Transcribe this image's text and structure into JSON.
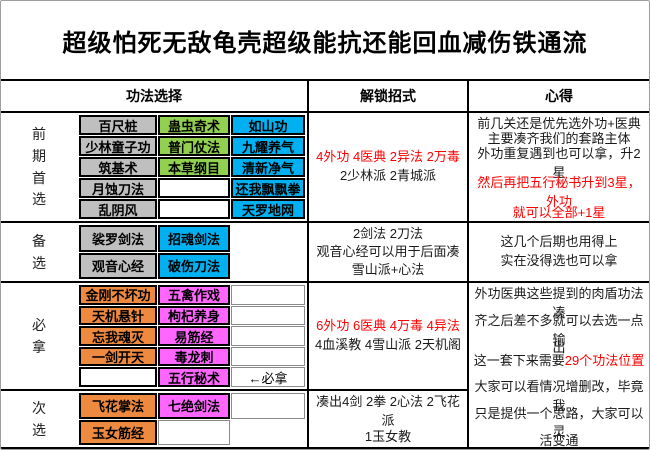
{
  "title": "超级怕死无敌龟壳超级能抗还能回血减伤铁通流",
  "header": {
    "skills": "功法选择",
    "unlock": "解锁招式",
    "notes": "心得"
  },
  "palette": {
    "gray": "#BFBFBF",
    "green": "#92D050",
    "blue": "#00B0F0",
    "orange": "#ED8A3F",
    "magenta": "#FF66FF",
    "highlight_text": "#FF0000",
    "grid_line": "#000000"
  },
  "sections": [
    {
      "id": "early-pick",
      "label": "前期首选",
      "skills": [
        [
          {
            "t": "百尺桩",
            "s": "gray"
          },
          {
            "t": "蛊虫奇术",
            "s": "green"
          },
          {
            "t": "如山功",
            "s": "blue"
          }
        ],
        [
          {
            "t": "少林童子功",
            "s": "gray"
          },
          {
            "t": "普门仗法",
            "s": "green"
          },
          {
            "t": "九耀养气",
            "s": "blue"
          }
        ],
        [
          {
            "t": "筑基术",
            "s": "gray"
          },
          {
            "t": "本草纲目",
            "s": "green"
          },
          {
            "t": "清新净气",
            "s": "blue"
          }
        ],
        [
          {
            "t": "月蚀刀法",
            "s": "gray"
          },
          {
            "t": "",
            "s": "boldempty"
          },
          {
            "t": "还我飘飘拳",
            "s": "blue"
          }
        ],
        [
          {
            "t": "乱阴风",
            "s": "gray"
          },
          {
            "t": "",
            "s": "boldempty"
          },
          {
            "t": "天罗地网",
            "s": "blue"
          }
        ]
      ],
      "unlock": [
        [
          {
            "t": "4外功 4医典 2异法 2万毒",
            "r": 1
          }
        ],
        [
          {
            "t": "2少林派 2青城派",
            "r": 0
          }
        ]
      ],
      "notes": [
        [
          {
            "t": "前几关还是优先选外功+医典",
            "r": 0
          }
        ],
        [
          {
            "t": "主要凑齐我们的套路主体",
            "r": 0
          }
        ],
        [
          {
            "t": "外功重复遇到也可以拿，升2星",
            "r": 0
          }
        ],
        [
          {
            "t": "然后再把五行秘书升到3星，外功",
            "r": 1
          }
        ],
        [
          {
            "t": "就可以全部+1星",
            "r": 1
          }
        ]
      ],
      "notes_rowspan": 1
    },
    {
      "id": "backup",
      "label": "备选",
      "skills": [
        [
          {
            "t": "裟罗剑法",
            "s": "gray"
          },
          {
            "t": "招魂剑法",
            "s": "blue"
          },
          {
            "t": "",
            "s": "none"
          }
        ],
        [
          {
            "t": "观音心经",
            "s": "gray"
          },
          {
            "t": "破伤刀法",
            "s": "blue"
          },
          {
            "t": "",
            "s": "none"
          }
        ]
      ],
      "unlock": [
        [
          {
            "t": "2剑法 2刀法",
            "r": 0
          }
        ],
        [
          {
            "t": "观音心经可以用于后面凑",
            "r": 0
          }
        ],
        [
          {
            "t": "雪山派+心法",
            "r": 0
          }
        ]
      ],
      "notes": [
        [
          {
            "t": "这几个后期也用得上",
            "r": 0
          }
        ],
        [
          {
            "t": "实在没得选也可以拿",
            "r": 0
          }
        ]
      ],
      "notes_rowspan": 1
    },
    {
      "id": "must-take",
      "label": "必拿",
      "skills": [
        [
          {
            "t": "金刚不坏功",
            "s": "orange"
          },
          {
            "t": "五禽作戏",
            "s": "magenta"
          },
          {
            "t": "",
            "s": "thin"
          }
        ],
        [
          {
            "t": "天机悬针",
            "s": "orange"
          },
          {
            "t": "枸杞养身",
            "s": "magenta"
          },
          {
            "t": "",
            "s": "thin"
          }
        ],
        [
          {
            "t": "忘我魂灭",
            "s": "orange"
          },
          {
            "t": "易筋经",
            "s": "magenta"
          },
          {
            "t": "",
            "s": "thin"
          }
        ],
        [
          {
            "t": "一剑开天",
            "s": "orange"
          },
          {
            "t": "毒龙刺",
            "s": "magenta"
          },
          {
            "t": "",
            "s": "thin"
          }
        ],
        [
          {
            "t": "",
            "s": "boldempty"
          },
          {
            "t": "五行秘术",
            "s": "magenta"
          },
          {
            "t": "←必拿",
            "s": "thin"
          }
        ]
      ],
      "unlock": [
        [
          {
            "t": "6外功 6医典 4万毒 4异法",
            "r": 1
          }
        ],
        [
          {
            "t": "4血溪教 4雪山派 2天机阁",
            "r": 0
          }
        ]
      ],
      "notes": [
        [
          {
            "t": "外功医典这些提到的肉盾功法凑",
            "r": 0
          }
        ],
        [
          {
            "t": "齐之后差不多就可以去选一点输",
            "r": 0
          }
        ],
        [
          {
            "t": "出",
            "r": 0
          }
        ],
        [
          {
            "t": "这一套下来需要",
            "r": 0
          },
          {
            "t": "29个功法位置",
            "r": 1
          }
        ],
        [
          {
            "t": "",
            "r": 0,
            "gap": 1
          }
        ],
        [
          {
            "t": "大家可以看情况增删改，毕竟我",
            "r": 0
          }
        ],
        [
          {
            "t": "只是提供一个思路，大家可以灵",
            "r": 0
          }
        ],
        [
          {
            "t": "活变通",
            "r": 0
          }
        ]
      ],
      "notes_rowspan": 2
    },
    {
      "id": "second-pick",
      "label": "次选",
      "skills": [
        [
          {
            "t": "飞花掌法",
            "s": "orange"
          },
          {
            "t": "七绝剑法",
            "s": "magenta"
          },
          {
            "t": "",
            "s": "thin"
          }
        ],
        [
          {
            "t": "玉女筋经",
            "s": "orange"
          },
          {
            "t": "",
            "s": "thin"
          },
          {
            "t": "",
            "s": "none"
          }
        ]
      ],
      "unlock": [
        [
          {
            "t": "凑出4剑 2拳 2心法 2飞花派",
            "r": 0
          }
        ],
        [
          {
            "t": "1玉女教",
            "r": 0
          }
        ]
      ],
      "notes": null,
      "notes_rowspan": 0
    }
  ]
}
